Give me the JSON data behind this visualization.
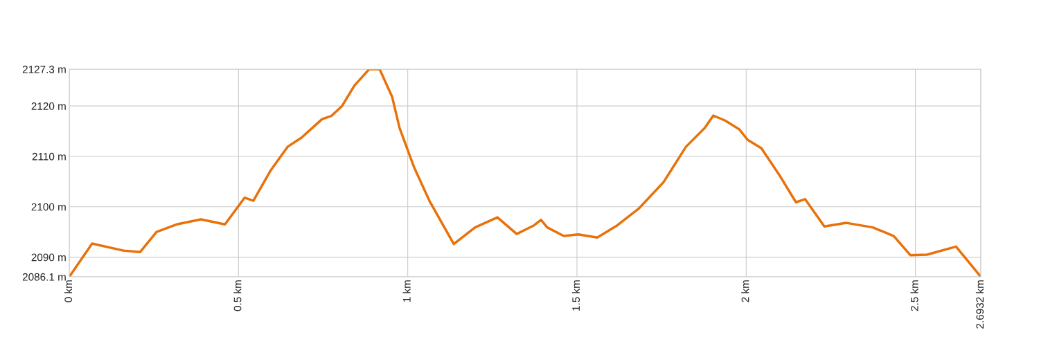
{
  "chart_data": {
    "type": "line",
    "x": [
      0,
      0.0675,
      0.16,
      0.209,
      0.258,
      0.317,
      0.389,
      0.46,
      0.518,
      0.544,
      0.594,
      0.645,
      0.686,
      0.747,
      0.774,
      0.806,
      0.843,
      0.886,
      0.917,
      0.954,
      0.976,
      1.019,
      1.064,
      1.136,
      1.199,
      1.265,
      1.322,
      1.373,
      1.394,
      1.412,
      1.461,
      1.504,
      1.56,
      1.619,
      1.682,
      1.756,
      1.822,
      1.877,
      1.903,
      1.938,
      1.979,
      2.004,
      2.045,
      2.098,
      2.147,
      2.174,
      2.231,
      2.296,
      2.374,
      2.436,
      2.485,
      2.534,
      2.62,
      2.6932
    ],
    "series": [
      {
        "color": "#e8710a",
        "values": [
          2086.1,
          2092.7,
          2091.3,
          2091.0,
          2095.0,
          2096.5,
          2097.5,
          2096.5,
          2101.8,
          2101.2,
          2107.1,
          2111.9,
          2113.7,
          2117.4,
          2118.0,
          2120.0,
          2124.1,
          2127.3,
          2127.3,
          2121.8,
          2115.6,
          2107.8,
          2101.2,
          2092.6,
          2095.9,
          2097.9,
          2094.6,
          2096.3,
          2097.4,
          2095.9,
          2094.2,
          2094.5,
          2093.9,
          2096.3,
          2099.6,
          2104.9,
          2111.9,
          2115.6,
          2118.1,
          2117.1,
          2115.4,
          2113.3,
          2111.6,
          2106.3,
          2100.9,
          2101.5,
          2096.1,
          2096.8,
          2095.9,
          2094.2,
          2090.4,
          2090.5,
          2092.1,
          2086.1
        ]
      }
    ],
    "xlim": [
      0,
      2.6932
    ],
    "xticks": [
      {
        "value": 0,
        "label": "0 km"
      },
      {
        "value": 0.5,
        "label": "0.5 km"
      },
      {
        "value": 1,
        "label": "1 km"
      },
      {
        "value": 1.5,
        "label": "1.5 km"
      },
      {
        "value": 2,
        "label": "2 km"
      },
      {
        "value": 2.5,
        "label": "2.5 km"
      },
      {
        "value": 2.6932,
        "label": "2.6932 km"
      }
    ],
    "ylim": [
      2086.1,
      2127.3
    ],
    "yticks": [
      {
        "value": 2086.1,
        "label": "2086.1 m"
      },
      {
        "value": 2090,
        "label": "2090 m"
      },
      {
        "value": 2100,
        "label": "2100 m"
      },
      {
        "value": 2110,
        "label": "2110 m"
      },
      {
        "value": 2120,
        "label": "2120 m"
      },
      {
        "value": 2127.3,
        "label": "2127.3 m"
      }
    ],
    "grid": true,
    "legend": false,
    "marker": "none",
    "line_style": "solid"
  }
}
